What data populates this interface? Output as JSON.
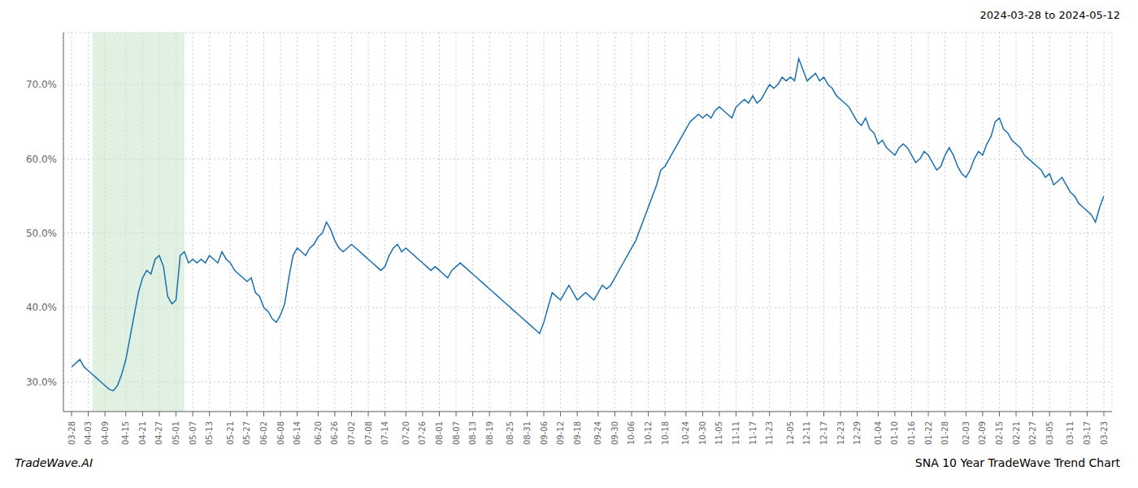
{
  "chart_data": {
    "type": "line",
    "title": "SNA 10 Year TradeWave Trend Chart",
    "subtitle": "2024-03-28 to 2024-05-12",
    "annotations": [
      "TradeWave.AI"
    ],
    "color": "#1a6faf",
    "grid": true,
    "ylim": [
      26,
      77
    ],
    "yticks": [
      {
        "value": 30,
        "label": "30.0%"
      },
      {
        "value": 40,
        "label": "40.0%"
      },
      {
        "value": 50,
        "label": "50.0%"
      },
      {
        "value": 60,
        "label": "60.0%"
      },
      {
        "value": 70,
        "label": "70.0%"
      }
    ],
    "highlight": {
      "start": 5,
      "end": 27,
      "color": "#c8e6c9"
    },
    "categories": [
      "03-28",
      null,
      null,
      null,
      "04-03",
      null,
      null,
      null,
      "04-09",
      null,
      null,
      null,
      null,
      "04-15",
      null,
      null,
      null,
      "04-21",
      null,
      null,
      null,
      "04-27",
      null,
      null,
      null,
      "05-01",
      null,
      null,
      null,
      "05-07",
      null,
      null,
      null,
      "05-13",
      null,
      null,
      null,
      null,
      "05-21",
      null,
      null,
      null,
      "05-27",
      null,
      null,
      null,
      "06-02",
      null,
      null,
      null,
      "06-08",
      null,
      null,
      null,
      "06-14",
      null,
      null,
      null,
      null,
      "06-20",
      null,
      null,
      null,
      "06-26",
      null,
      null,
      null,
      "07-02",
      null,
      null,
      null,
      "07-08",
      null,
      null,
      null,
      "07-14",
      null,
      null,
      null,
      null,
      "07-20",
      null,
      null,
      null,
      "07-26",
      null,
      null,
      null,
      "08-01",
      null,
      null,
      null,
      "08-07",
      null,
      null,
      null,
      "08-13",
      null,
      null,
      null,
      "08-19",
      null,
      null,
      null,
      null,
      "08-25",
      null,
      null,
      null,
      "08-31",
      null,
      null,
      null,
      "09-06",
      null,
      null,
      null,
      "09-12",
      null,
      null,
      null,
      "09-18",
      null,
      null,
      null,
      null,
      "09-24",
      null,
      null,
      null,
      "09-30",
      null,
      null,
      null,
      "10-06",
      null,
      null,
      null,
      "10-12",
      null,
      null,
      null,
      "10-18",
      null,
      null,
      null,
      null,
      "10-24",
      null,
      null,
      null,
      "10-30",
      null,
      null,
      null,
      "11-05",
      null,
      null,
      null,
      "11-11",
      null,
      null,
      null,
      "11-17",
      null,
      null,
      null,
      "11-23",
      null,
      null,
      null,
      null,
      "12-05",
      null,
      null,
      null,
      "12-11",
      null,
      null,
      null,
      "12-17",
      null,
      null,
      null,
      "12-23",
      null,
      null,
      null,
      "12-29",
      null,
      null,
      null,
      null,
      "01-04",
      null,
      null,
      null,
      "01-10",
      null,
      null,
      null,
      "01-16",
      null,
      null,
      null,
      "01-22",
      null,
      null,
      null,
      "01-28",
      null,
      null,
      null,
      null,
      "02-03",
      null,
      null,
      null,
      "02-09",
      null,
      null,
      null,
      "02-15",
      null,
      null,
      null,
      "02-21",
      null,
      null,
      null,
      "02-27",
      null,
      null,
      null,
      "03-05",
      null,
      null,
      null,
      null,
      "03-11",
      null,
      null,
      null,
      "03-17",
      null,
      null,
      null,
      "03-23"
    ],
    "values": [
      32.0,
      32.5,
      33.0,
      32.0,
      31.5,
      31.0,
      30.5,
      30.0,
      29.5,
      29.0,
      28.8,
      29.5,
      31.0,
      33.0,
      36.0,
      39.0,
      42.0,
      44.0,
      45.0,
      44.5,
      46.5,
      47.0,
      45.5,
      41.5,
      40.5,
      41.0,
      47.0,
      47.5,
      46.0,
      46.5,
      46.0,
      46.5,
      46.0,
      47.0,
      46.5,
      46.0,
      47.5,
      46.5,
      46.0,
      45.0,
      44.5,
      44.0,
      43.5,
      44.0,
      42.0,
      41.5,
      40.0,
      39.5,
      38.5,
      38.0,
      39.0,
      40.5,
      44.0,
      47.0,
      48.0,
      47.5,
      47.0,
      48.0,
      48.5,
      49.5,
      50.0,
      51.5,
      50.5,
      49.0,
      48.0,
      47.5,
      48.0,
      48.5,
      48.0,
      47.5,
      47.0,
      46.5,
      46.0,
      45.5,
      45.0,
      45.5,
      47.0,
      48.0,
      48.5,
      47.5,
      48.0,
      47.5,
      47.0,
      46.5,
      46.0,
      45.5,
      45.0,
      45.5,
      45.0,
      44.5,
      44.0,
      45.0,
      45.5,
      46.0,
      45.5,
      45.0,
      44.5,
      44.0,
      43.5,
      43.0,
      42.5,
      42.0,
      41.5,
      41.0,
      40.5,
      40.0,
      39.5,
      39.0,
      38.5,
      38.0,
      37.5,
      37.0,
      36.5,
      38.0,
      40.0,
      42.0,
      41.5,
      41.0,
      42.0,
      43.0,
      42.0,
      41.0,
      41.5,
      42.0,
      41.5,
      41.0,
      42.0,
      43.0,
      42.5,
      43.0,
      44.0,
      45.0,
      46.0,
      47.0,
      48.0,
      49.0,
      50.5,
      52.0,
      53.5,
      55.0,
      56.5,
      58.5,
      59.0,
      60.0,
      61.0,
      62.0,
      63.0,
      64.0,
      65.0,
      65.5,
      66.0,
      65.5,
      66.0,
      65.5,
      66.5,
      67.0,
      66.5,
      66.0,
      65.5,
      67.0,
      67.5,
      68.0,
      67.5,
      68.5,
      67.5,
      68.0,
      69.0,
      70.0,
      69.5,
      70.0,
      71.0,
      70.5,
      71.0,
      70.5,
      73.5,
      72.0,
      70.5,
      71.0,
      71.5,
      70.5,
      71.0,
      70.0,
      69.5,
      68.5,
      68.0,
      67.5,
      67.0,
      66.0,
      65.0,
      64.5,
      65.5,
      64.0,
      63.5,
      62.0,
      62.5,
      61.5,
      61.0,
      60.5,
      61.5,
      62.0,
      61.5,
      60.5,
      59.5,
      60.0,
      61.0,
      60.5,
      59.5,
      58.5,
      59.0,
      60.5,
      61.5,
      60.5,
      59.0,
      58.0,
      57.5,
      58.5,
      60.0,
      61.0,
      60.5,
      62.0,
      63.0,
      65.0,
      65.5,
      64.0,
      63.5,
      62.5,
      62.0,
      61.5,
      60.5,
      60.0,
      59.5,
      59.0,
      58.5,
      57.5,
      58.0,
      56.5,
      57.0,
      57.5,
      56.5,
      55.5,
      55.0,
      54.0,
      53.5,
      53.0,
      52.5,
      51.5,
      53.5,
      55.0
    ]
  }
}
